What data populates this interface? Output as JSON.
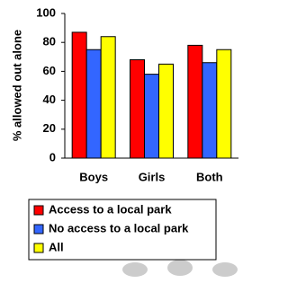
{
  "chart_data": {
    "type": "bar",
    "y_label": "% allowed out alone",
    "categories": [
      "Boys",
      "Girls",
      "Both"
    ],
    "series": [
      {
        "name": "Access to a local park",
        "color": "#ff0000",
        "values": [
          87,
          68,
          78
        ]
      },
      {
        "name": "No access to a local park",
        "color": "#3366ff",
        "values": [
          75,
          58,
          66
        ]
      },
      {
        "name": "All",
        "color": "#ffff00",
        "values": [
          84,
          65,
          75
        ]
      }
    ],
    "ylim": [
      0,
      100
    ],
    "yticks": [
      0,
      20,
      40,
      60,
      80,
      100
    ],
    "grid": false,
    "legend": "bottom"
  }
}
